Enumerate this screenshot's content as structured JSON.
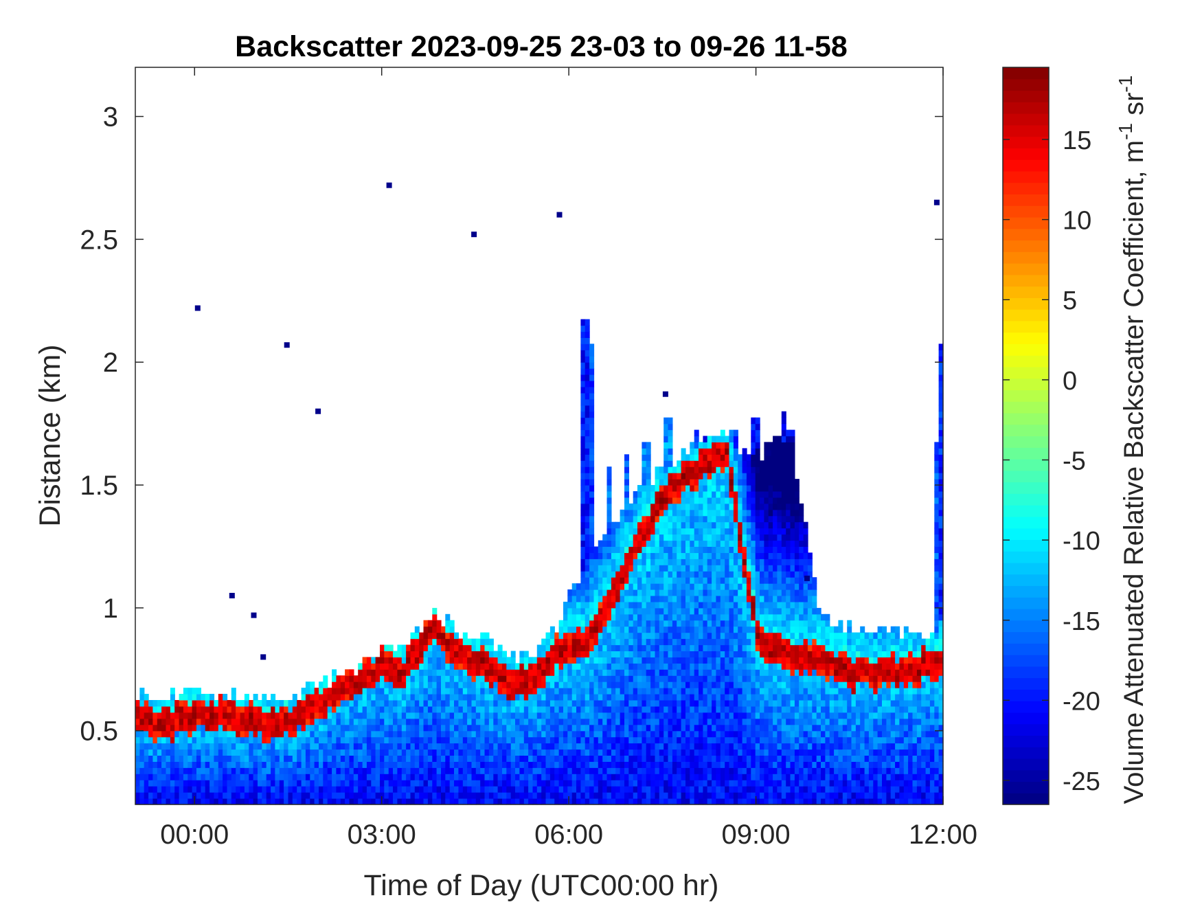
{
  "chart_data": {
    "type": "heatmap",
    "title": "Backscatter 2023-09-25 23-03 to 09-26 11-58",
    "xlabel": "Time of Day (UTC00:00 hr)",
    "ylabel": "Distance (km)",
    "colorbar_label_main": "Volume Attenuated Relative Backscatter Coefficient, m",
    "colorbar_label_sup1": "-1",
    "colorbar_label_mid": " sr",
    "colorbar_label_sup2": "-1",
    "colormap": "jet",
    "x_unit": "hours relative to 2023-09-26 00:00 UTC",
    "xlim": [
      -0.95,
      12.0
    ],
    "ylim": [
      0.2,
      3.2
    ],
    "clim": [
      -26.5,
      19.5
    ],
    "x_ticks": [
      0,
      3,
      6,
      9,
      12
    ],
    "x_tick_labels": [
      "00:00",
      "03:00",
      "06:00",
      "09:00",
      "12:00"
    ],
    "y_ticks": [
      0.5,
      1,
      1.5,
      2,
      2.5,
      3
    ],
    "y_tick_labels": [
      "0.5",
      "1",
      "1.5",
      "2",
      "2.5",
      "3"
    ],
    "c_ticks": [
      -25,
      -20,
      -15,
      -10,
      -5,
      0,
      5,
      10,
      15
    ],
    "c_tick_labels": [
      "-25",
      "-20",
      "-15",
      "-10",
      "-5",
      "0",
      "5",
      "10",
      "15"
    ],
    "layer_top_km": [
      [
        -0.95,
        0.64
      ],
      [
        -0.5,
        0.62
      ],
      [
        -0.2,
        0.64
      ],
      [
        0.5,
        0.64
      ],
      [
        1.0,
        0.62
      ],
      [
        1.5,
        0.63
      ],
      [
        2.0,
        0.68
      ],
      [
        2.5,
        0.74
      ],
      [
        3.0,
        0.83
      ],
      [
        3.3,
        0.8
      ],
      [
        3.8,
        0.97
      ],
      [
        4.2,
        0.9
      ],
      [
        4.6,
        0.86
      ],
      [
        5.0,
        0.8
      ],
      [
        5.4,
        0.8
      ],
      [
        5.8,
        0.93
      ],
      [
        6.1,
        1.1
      ],
      [
        6.3,
        1.2
      ],
      [
        6.7,
        1.35
      ],
      [
        7.0,
        1.45
      ],
      [
        7.5,
        1.55
      ],
      [
        8.0,
        1.65
      ],
      [
        8.5,
        1.7
      ],
      [
        8.9,
        1.6
      ],
      [
        9.5,
        1.7
      ],
      [
        10.0,
        0.95
      ],
      [
        10.5,
        0.9
      ],
      [
        11.0,
        0.9
      ],
      [
        11.5,
        0.88
      ],
      [
        12.0,
        0.9
      ]
    ],
    "peak_layer_km": [
      [
        -0.95,
        0.53
      ],
      [
        -0.5,
        0.52
      ],
      [
        0.0,
        0.55
      ],
      [
        0.5,
        0.55
      ],
      [
        1.0,
        0.52
      ],
      [
        1.5,
        0.53
      ],
      [
        2.0,
        0.6
      ],
      [
        2.5,
        0.68
      ],
      [
        3.0,
        0.75
      ],
      [
        3.3,
        0.72
      ],
      [
        3.8,
        0.9
      ],
      [
        4.2,
        0.8
      ],
      [
        4.6,
        0.76
      ],
      [
        5.0,
        0.68
      ],
      [
        5.4,
        0.69
      ],
      [
        5.8,
        0.82
      ],
      [
        6.3,
        0.85
      ],
      [
        7.0,
        1.22
      ],
      [
        7.5,
        1.45
      ],
      [
        8.0,
        1.55
      ],
      [
        8.5,
        1.62
      ],
      [
        9.0,
        0.85
      ],
      [
        9.5,
        0.8
      ],
      [
        10.0,
        0.78
      ],
      [
        10.5,
        0.72
      ],
      [
        11.0,
        0.72
      ],
      [
        11.5,
        0.74
      ],
      [
        12.0,
        0.78
      ]
    ],
    "peak_value": 17,
    "near_surface_value": -21,
    "columns": [
      {
        "x": 6.22,
        "top": 2.15,
        "value": -20
      },
      {
        "x": 6.3,
        "top": 2.05,
        "value": -18
      },
      {
        "x": 6.6,
        "top": 1.55,
        "value": -16
      },
      {
        "x": 6.9,
        "top": 1.62,
        "value": -17
      },
      {
        "x": 7.2,
        "top": 1.65,
        "value": -15
      },
      {
        "x": 7.55,
        "top": 1.75,
        "value": -14
      },
      {
        "x": 8.0,
        "top": 1.7,
        "value": -18
      },
      {
        "x": 8.2,
        "top": 1.68,
        "value": -20
      },
      {
        "x": 8.65,
        "top": 1.72,
        "value": -18
      },
      {
        "x": 8.95,
        "top": 1.75,
        "value": -20
      },
      {
        "x": 9.42,
        "top": 1.78,
        "value": -21
      },
      {
        "x": 9.52,
        "top": 1.72,
        "value": -22
      },
      {
        "x": 11.85,
        "top": 1.66,
        "value": -17
      },
      {
        "x": 11.98,
        "top": 2.05,
        "value": -19
      }
    ],
    "isolated_points": [
      [
        0.05,
        2.22
      ],
      [
        1.48,
        2.07
      ],
      [
        1.98,
        1.8
      ],
      [
        0.6,
        1.05
      ],
      [
        0.95,
        0.97
      ],
      [
        1.1,
        0.8
      ],
      [
        3.12,
        2.72
      ],
      [
        4.48,
        2.52
      ],
      [
        5.85,
        2.6
      ],
      [
        7.55,
        1.87
      ],
      [
        9.2,
        1.63
      ],
      [
        9.82,
        1.12
      ],
      [
        11.9,
        2.65
      ]
    ]
  }
}
